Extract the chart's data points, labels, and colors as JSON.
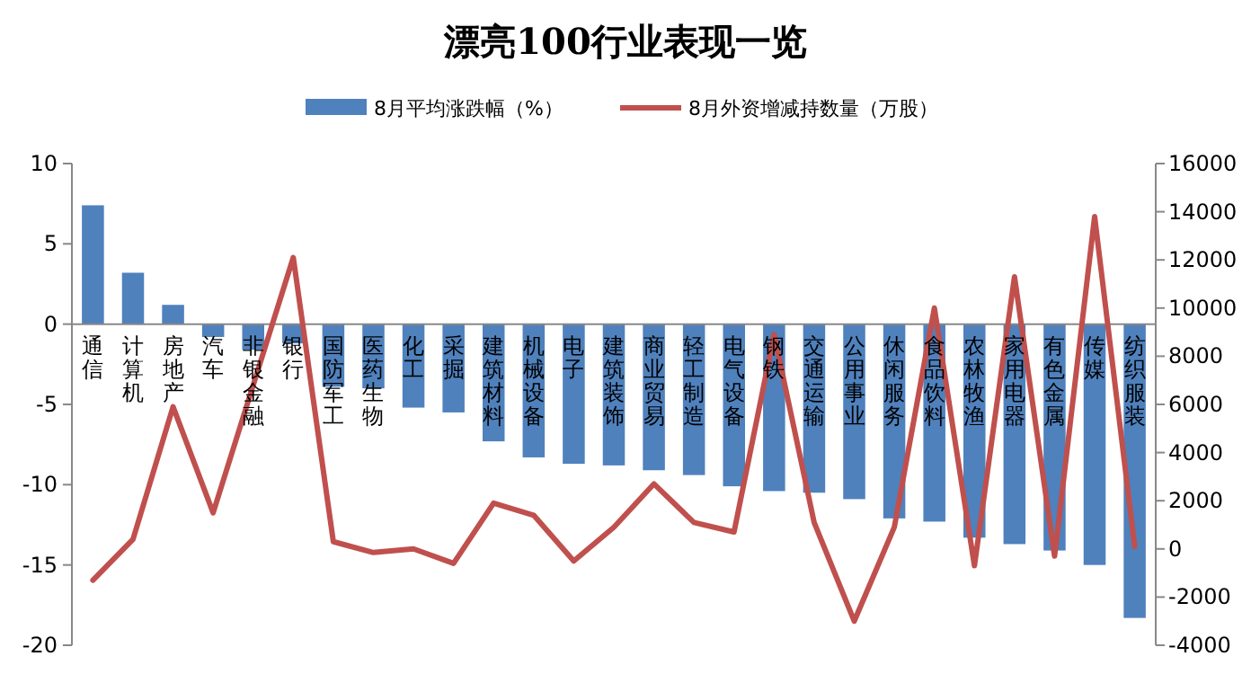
{
  "chart_data": {
    "type": "bar",
    "title": "漂亮100行业表现一览",
    "categories": [
      "通信",
      "计算机",
      "房地产",
      "汽车",
      "非银金融",
      "银行",
      "国防军工",
      "医药生物",
      "化工",
      "采掘",
      "建筑材料",
      "机械设备",
      "电子",
      "建筑装饰",
      "商业贸易",
      "轻工制造",
      "电气设备",
      "钢铁",
      "交通运输",
      "公用事业",
      "休闲服务",
      "食品饮料",
      "农林牧渔",
      "家用电器",
      "有色金属",
      "传媒",
      "纺织服装"
    ],
    "series": [
      {
        "name": "8月平均涨跌幅（%）",
        "color": "#4f81bd",
        "values": [
          7.4,
          3.2,
          1.2,
          -0.8,
          -1.6,
          -1.2,
          -3.9,
          -4.0,
          -5.2,
          -5.5,
          -7.3,
          -8.3,
          -8.7,
          -8.8,
          -9.1,
          -9.4,
          -10.1,
          -10.4,
          -10.5,
          -10.9,
          -12.1,
          -12.3,
          -13.3,
          -13.7,
          -14.1,
          -15.0,
          -18.3
        ]
      },
      {
        "name": "8月外资增减持数量（万股）",
        "type": "line",
        "axis": "y2",
        "color": "#c0504d",
        "values": [
          -1300,
          400,
          5900,
          1500,
          6800,
          12100,
          300,
          -150,
          0,
          -600,
          1900,
          1400,
          -500,
          900,
          2700,
          1100,
          700,
          8900,
          1100,
          -3000,
          900,
          10000,
          -700,
          11300,
          -300,
          13800,
          100
        ]
      }
    ],
    "ylim": [
      -20,
      10
    ],
    "yticks": [
      -20,
      -15,
      -10,
      -5,
      0,
      5,
      10
    ],
    "y2lim": [
      -4000,
      16000
    ],
    "y2ticks": [
      -4000,
      -2000,
      0,
      2000,
      4000,
      6000,
      8000,
      10000,
      12000,
      14000,
      16000
    ],
    "grid": false,
    "legend": "top",
    "marker": "none",
    "line_style": "solid"
  }
}
